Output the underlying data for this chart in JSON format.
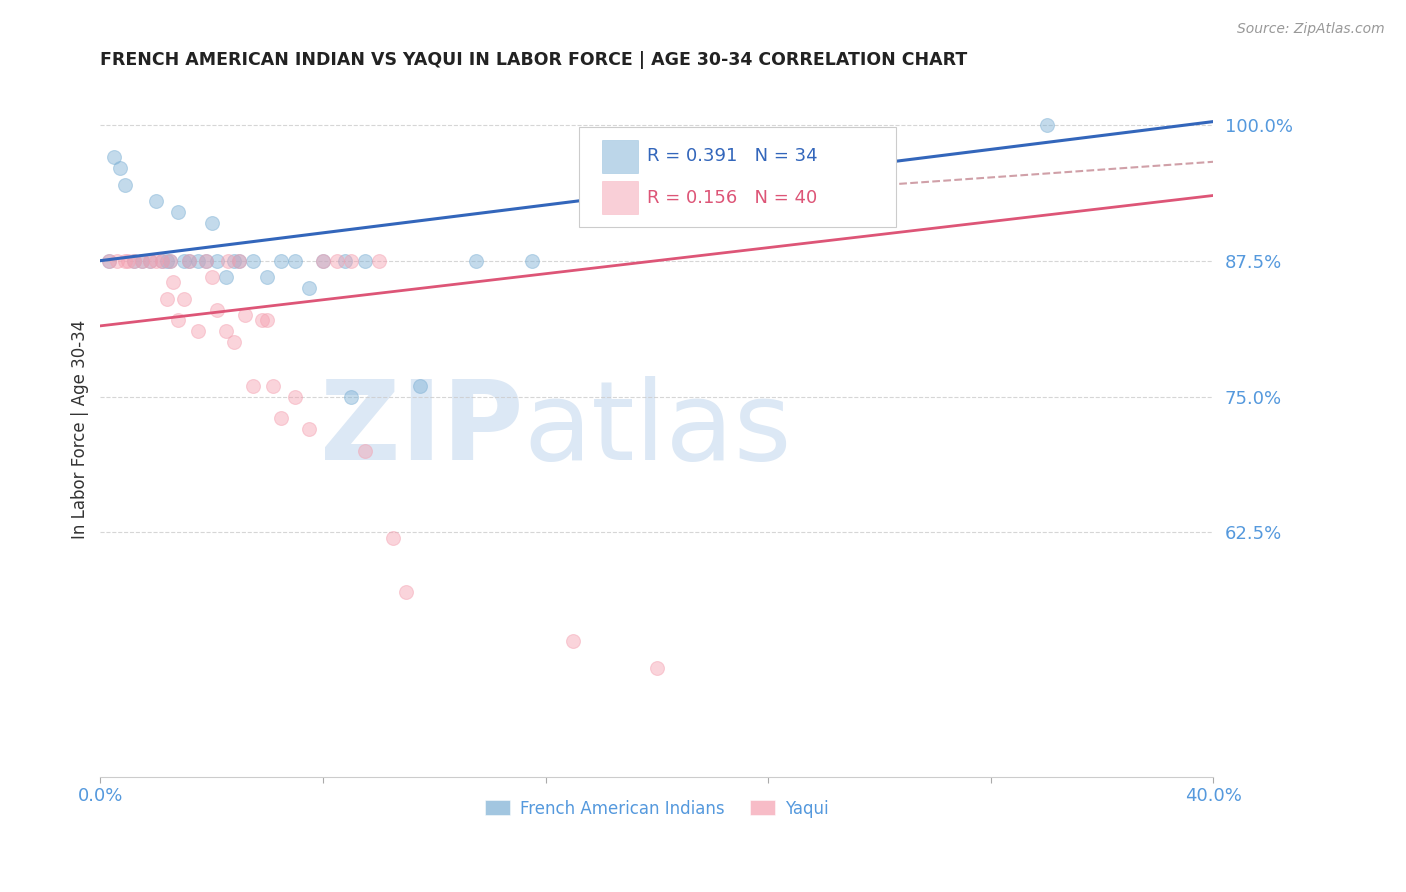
{
  "title": "FRENCH AMERICAN INDIAN VS YAQUI IN LABOR FORCE | AGE 30-34 CORRELATION CHART",
  "source": "Source: ZipAtlas.com",
  "ylabel": "In Labor Force | Age 30-34",
  "xlim": [
    0.0,
    0.4
  ],
  "ylim": [
    0.4,
    1.04
  ],
  "xticks": [
    0.0,
    0.08,
    0.16,
    0.24,
    0.32,
    0.4
  ],
  "xticklabels": [
    "0.0%",
    "",
    "",
    "",
    "",
    "40.0%"
  ],
  "yticks": [
    0.625,
    0.75,
    0.875,
    1.0
  ],
  "yticklabels": [
    "62.5%",
    "75.0%",
    "87.5%",
    "100.0%"
  ],
  "blue_R": 0.391,
  "blue_N": 34,
  "pink_R": 0.156,
  "pink_N": 40,
  "blue_color": "#7BAFD4",
  "pink_color": "#F4A0B0",
  "blue_line_color": "#3366BB",
  "pink_line_color": "#DD5577",
  "dashed_line_color": "#D0A0A8",
  "grid_color": "#CCCCCC",
  "watermark_color": "#DCE8F5",
  "title_color": "#222222",
  "axis_label_color": "#333333",
  "tick_label_color": "#5599DD",
  "legend_text_color_blue": "#3366BB",
  "legend_text_color_pink": "#DD5577",
  "blue_scatter_x": [
    0.003,
    0.005,
    0.007,
    0.009,
    0.012,
    0.015,
    0.018,
    0.02,
    0.022,
    0.024,
    0.025,
    0.028,
    0.03,
    0.032,
    0.035,
    0.038,
    0.04,
    0.042,
    0.045,
    0.048,
    0.05,
    0.055,
    0.06,
    0.065,
    0.07,
    0.075,
    0.08,
    0.088,
    0.09,
    0.095,
    0.115,
    0.135,
    0.155,
    0.34
  ],
  "blue_scatter_y": [
    0.875,
    0.97,
    0.96,
    0.945,
    0.875,
    0.875,
    0.875,
    0.93,
    0.875,
    0.875,
    0.875,
    0.92,
    0.875,
    0.875,
    0.875,
    0.875,
    0.91,
    0.875,
    0.86,
    0.875,
    0.875,
    0.875,
    0.86,
    0.875,
    0.875,
    0.85,
    0.875,
    0.875,
    0.75,
    0.875,
    0.76,
    0.875,
    0.875,
    1.0
  ],
  "pink_scatter_x": [
    0.003,
    0.006,
    0.009,
    0.01,
    0.012,
    0.015,
    0.018,
    0.02,
    0.022,
    0.024,
    0.025,
    0.026,
    0.028,
    0.03,
    0.032,
    0.035,
    0.038,
    0.04,
    0.042,
    0.045,
    0.046,
    0.048,
    0.05,
    0.052,
    0.055,
    0.058,
    0.06,
    0.062,
    0.065,
    0.07,
    0.075,
    0.08,
    0.085,
    0.09,
    0.095,
    0.1,
    0.105,
    0.11,
    0.17,
    0.2
  ],
  "pink_scatter_y": [
    0.875,
    0.875,
    0.875,
    0.875,
    0.875,
    0.875,
    0.875,
    0.875,
    0.875,
    0.84,
    0.875,
    0.855,
    0.82,
    0.84,
    0.875,
    0.81,
    0.875,
    0.86,
    0.83,
    0.81,
    0.875,
    0.8,
    0.875,
    0.825,
    0.76,
    0.82,
    0.82,
    0.76,
    0.73,
    0.75,
    0.72,
    0.875,
    0.875,
    0.875,
    0.7,
    0.875,
    0.62,
    0.57,
    0.525,
    0.5
  ],
  "marker_size": 100,
  "marker_alpha": 0.45,
  "marker_edgewidth": 0.8
}
